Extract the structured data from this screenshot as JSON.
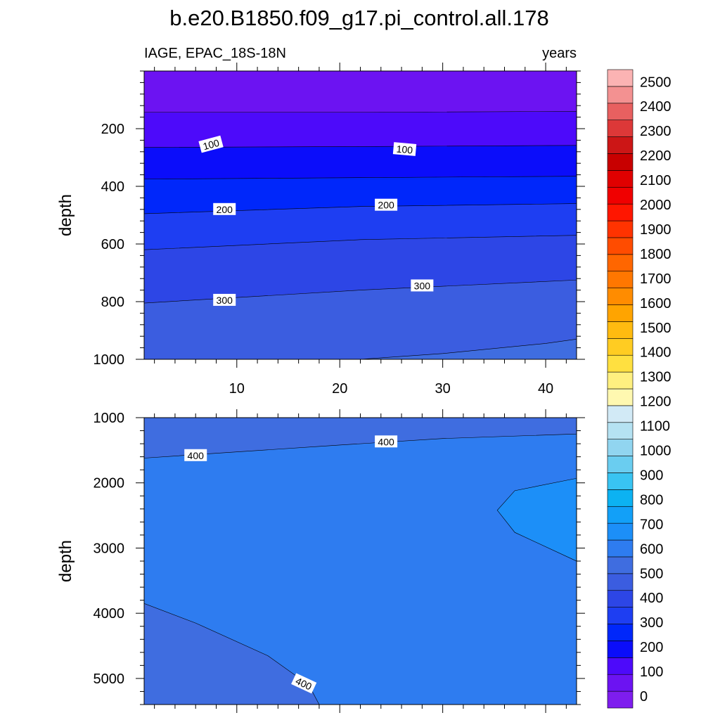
{
  "chart_data": {
    "type": "contour",
    "title": "b.e20.B1850.f09_g17.pi_control.all.178",
    "left_subtitle": "IAGE, EPAC_18S-18N",
    "right_subtitle": "years",
    "ylabel": "depth",
    "xlim": [
      1,
      43
    ],
    "x_ticks": [
      10,
      20,
      30,
      40
    ],
    "x_tick_labels": [
      "10",
      "20",
      "30",
      "40"
    ],
    "upper_panel": {
      "ylim": [
        0,
        1000
      ],
      "y_ticks": [
        200,
        400,
        600,
        800,
        1000
      ],
      "y_tick_labels": [
        "200",
        "400",
        "600",
        "800",
        "1000"
      ],
      "bands": [
        {
          "top": [
            0,
            0,
            0
          ],
          "bottom": [
            143,
            143,
            140
          ],
          "level_index": 1
        },
        {
          "top": [
            143,
            143,
            140
          ],
          "bottom": [
            265,
            262,
            258
          ],
          "level_index": 2
        },
        {
          "top": [
            265,
            262,
            258
          ],
          "bottom": [
            375,
            370,
            365
          ],
          "level_index": 3
        },
        {
          "top": [
            375,
            370,
            365
          ],
          "bottom": [
            495,
            470,
            460
          ],
          "level_index": 4
        },
        {
          "top": [
            495,
            470,
            460
          ],
          "bottom": [
            620,
            585,
            570
          ],
          "level_index": 5
        },
        {
          "top": [
            620,
            585,
            570
          ],
          "bottom": [
            805,
            760,
            725
          ],
          "level_index": 6
        },
        {
          "top": [
            805,
            760,
            725
          ],
          "bottom": [
            1000,
            1000,
            1000
          ],
          "level_index": 7
        }
      ],
      "extra_region": {
        "points": [
          [
            22,
            1000
          ],
          [
            30,
            980
          ],
          [
            40,
            945
          ],
          [
            43,
            930
          ],
          [
            43,
            1000
          ]
        ],
        "level_index": 8
      },
      "contour_labels": [
        {
          "value": "100",
          "x": 7.5,
          "y": 255,
          "angle": -15
        },
        {
          "value": "100",
          "x": 26.3,
          "y": 272,
          "angle": 5
        },
        {
          "value": "200",
          "x": 8.8,
          "y": 480,
          "angle": 0
        },
        {
          "value": "200",
          "x": 24.5,
          "y": 465,
          "angle": 0
        },
        {
          "value": "300",
          "x": 8.8,
          "y": 795,
          "angle": 0
        },
        {
          "value": "300",
          "x": 28,
          "y": 745,
          "angle": 0
        }
      ]
    },
    "lower_panel": {
      "ylim": [
        1000,
        5400
      ],
      "y_ticks": [
        1000,
        2000,
        3000,
        4000,
        5000
      ],
      "y_tick_labels": [
        "1000",
        "2000",
        "3000",
        "4000",
        "5000"
      ],
      "background_level_index": 9,
      "regions": [
        {
          "points": [
            [
              1,
              1000
            ],
            [
              43,
              1000
            ],
            [
              43,
              1250
            ],
            [
              30,
              1320
            ],
            [
              20,
              1420
            ],
            [
              1,
              1620
            ]
          ],
          "level_index": 8
        },
        {
          "points": [
            [
              1,
              3850
            ],
            [
              6,
              4150
            ],
            [
              13,
              4650
            ],
            [
              17,
              5100
            ],
            [
              18,
              5400
            ],
            [
              1,
              5400
            ]
          ],
          "level_index": 8
        },
        {
          "points": [
            [
              43,
              1930
            ],
            [
              37,
              2120
            ],
            [
              35.3,
              2420
            ],
            [
              37,
              2760
            ],
            [
              43,
              3200
            ]
          ],
          "level_index": 10
        }
      ],
      "contour_labels": [
        {
          "value": "400",
          "x": 6,
          "y": 1580,
          "angle": 0
        },
        {
          "value": "400",
          "x": 24.5,
          "y": 1370,
          "angle": 0
        },
        {
          "value": "400",
          "x": 16.5,
          "y": 5080,
          "angle": 25
        }
      ]
    },
    "colorbar": {
      "labels": [
        "0",
        "100",
        "200",
        "300",
        "400",
        "500",
        "600",
        "700",
        "800",
        "900",
        "1000",
        "1100",
        "1200",
        "1300",
        "1400",
        "1500",
        "1600",
        "1700",
        "1800",
        "1900",
        "2000",
        "2100",
        "2200",
        "2300",
        "2400",
        "2500"
      ],
      "colors": [
        "#7e1dee",
        "#6c13f2",
        "#4d0afa",
        "#0b0dfa",
        "#0027fa",
        "#1e3ef2",
        "#2d46e6",
        "#3b5de0",
        "#3f6de0",
        "#2e7cf0",
        "#1c8ff8",
        "#12a0f8",
        "#0cb2f2",
        "#39c4f2",
        "#6acdf0",
        "#91d5f0",
        "#b5e2f2",
        "#d2eaf6",
        "#fff8b0",
        "#fff080",
        "#ffe040",
        "#ffcc22",
        "#ffbb10",
        "#ffa400",
        "#ff8c00",
        "#ff7700",
        "#ff6600",
        "#ff4c00",
        "#ff3300",
        "#ff1600",
        "#f00000",
        "#e00000",
        "#c80000",
        "#cc1616",
        "#dd3838",
        "#e86060",
        "#f39191",
        "#fbb3b3"
      ]
    }
  }
}
